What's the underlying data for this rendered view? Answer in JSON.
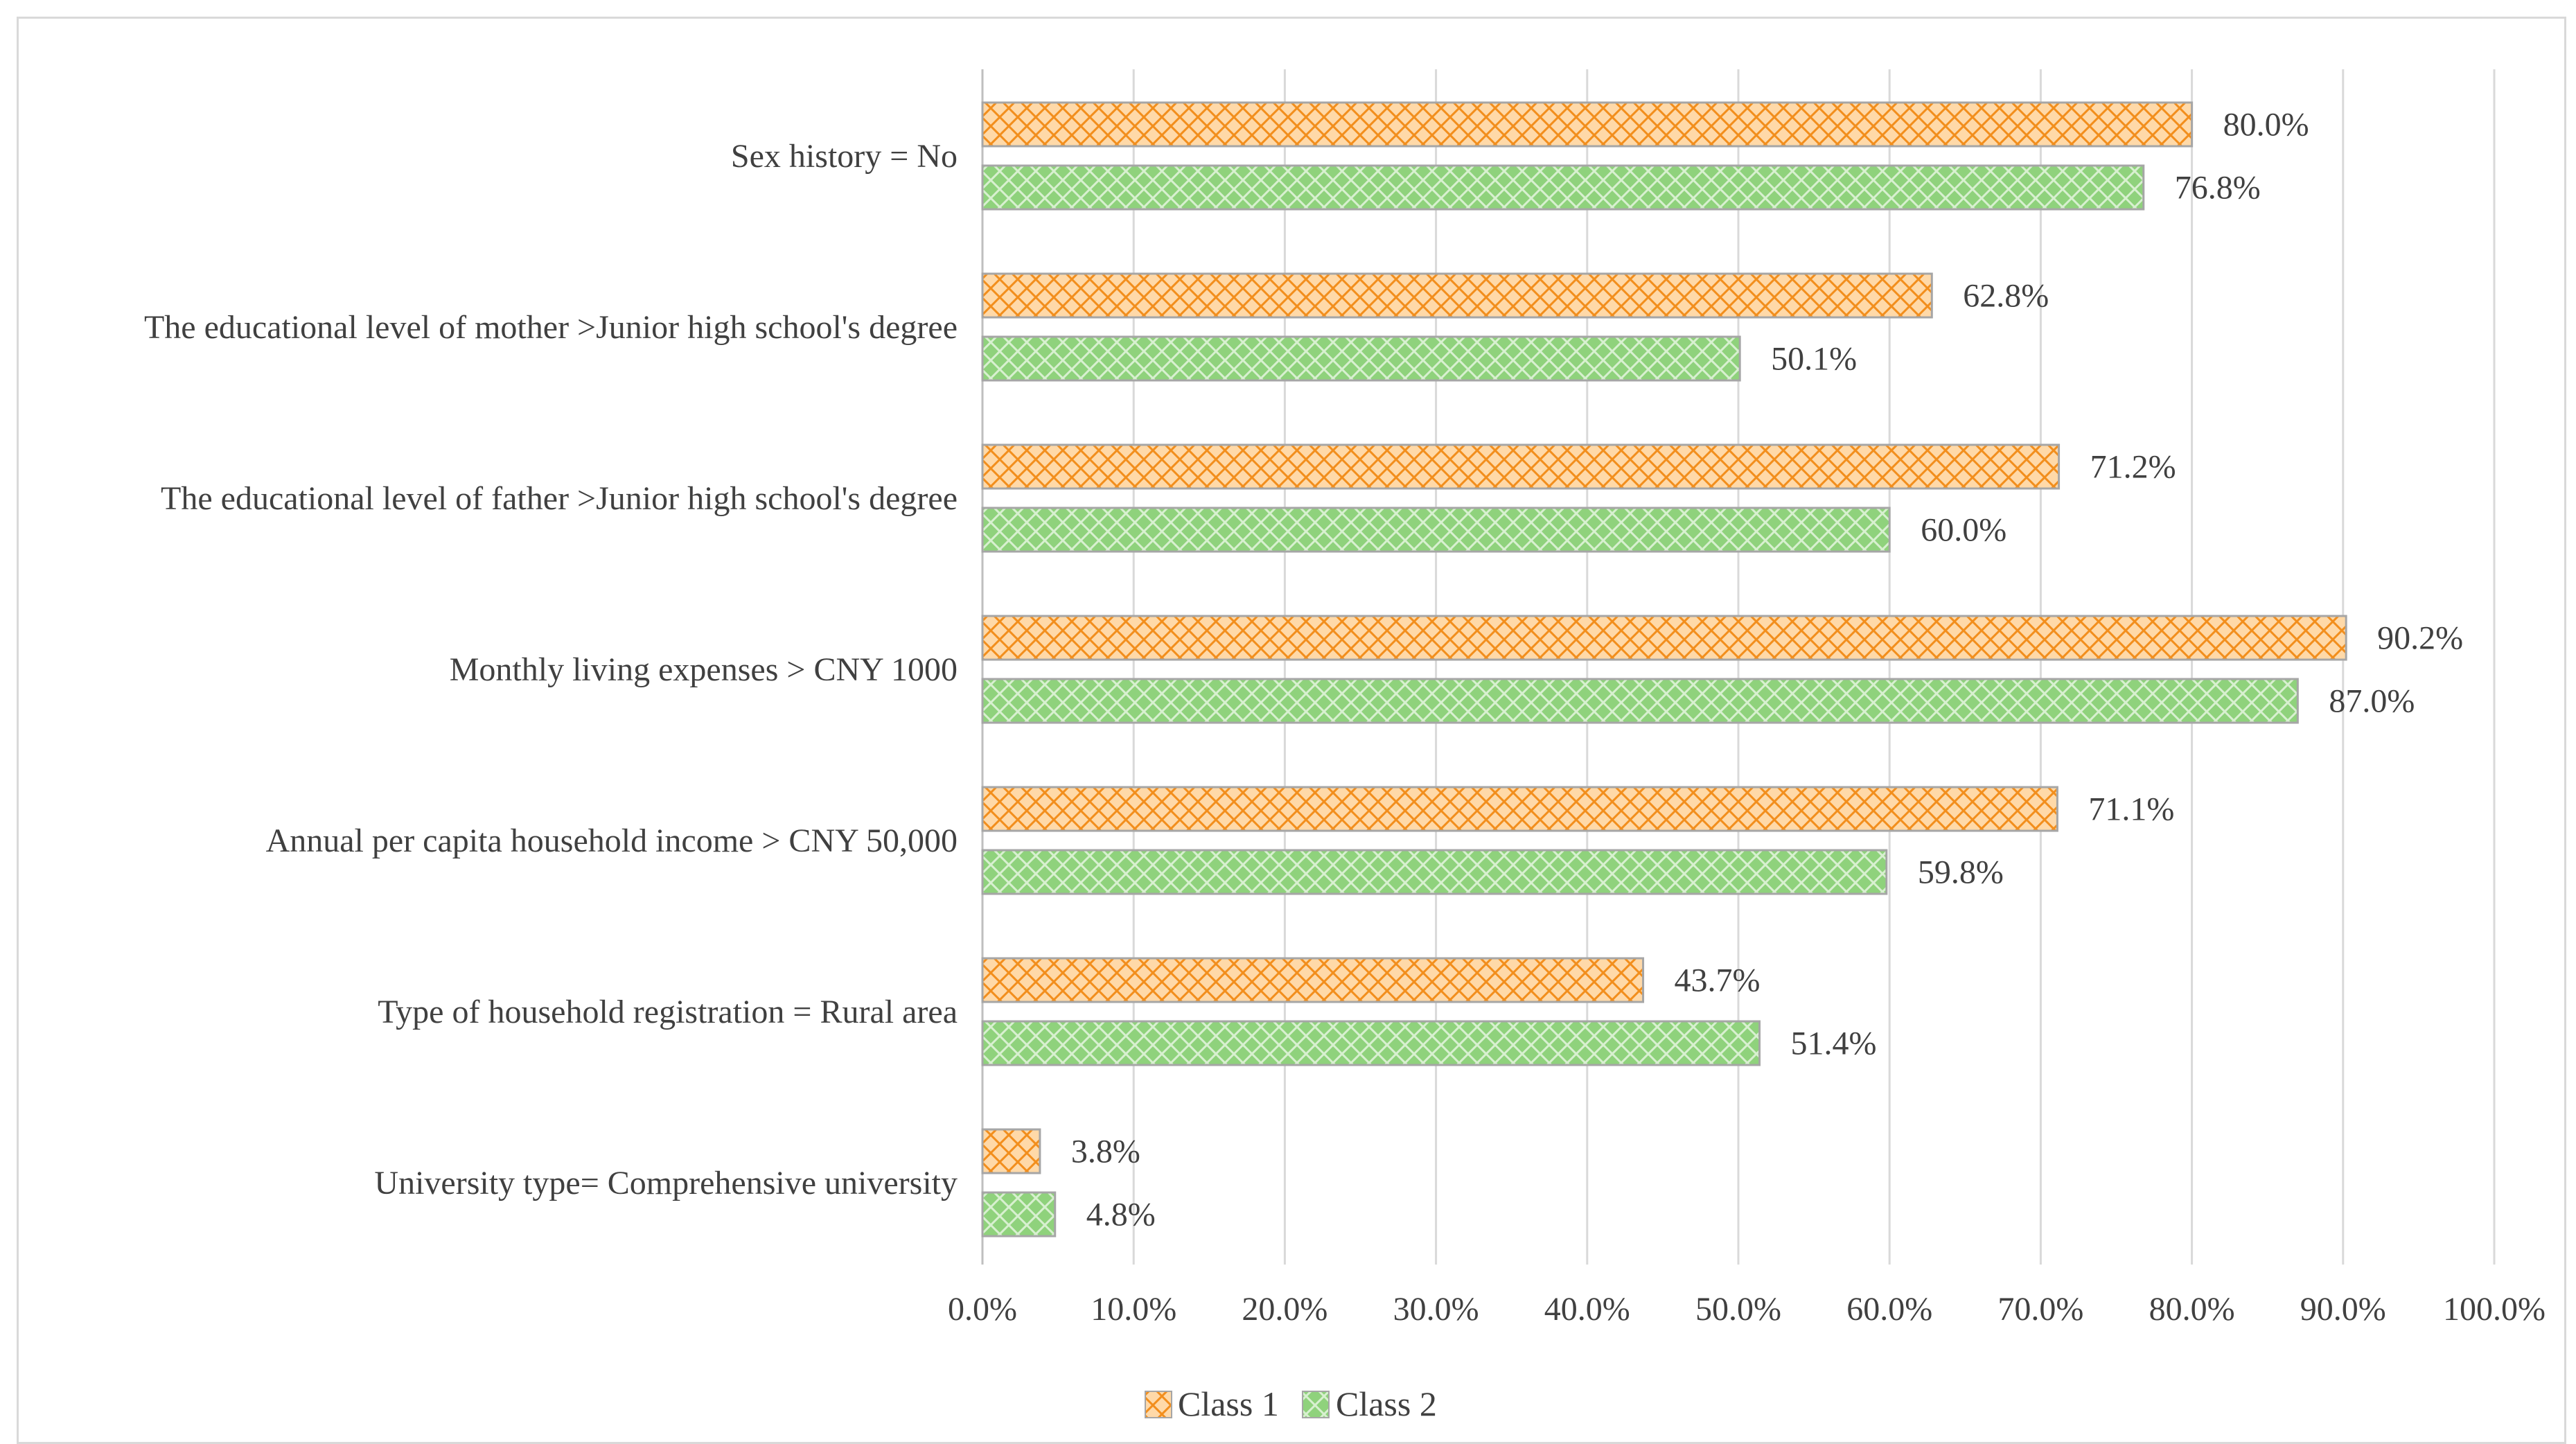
{
  "chart_data": {
    "type": "bar",
    "orientation": "horizontal",
    "title": "",
    "xlabel": "",
    "ylabel": "",
    "xlim": [
      0,
      100
    ],
    "x_ticks": [
      "0.0%",
      "10.0%",
      "20.0%",
      "30.0%",
      "40.0%",
      "50.0%",
      "60.0%",
      "70.0%",
      "80.0%",
      "90.0%",
      "100.0%"
    ],
    "grid": "vertical",
    "legend_position": "bottom",
    "categories": [
      "Sex history = No",
      "The educational level of mother >Junior high school's degree",
      "The educational level of father >Junior high school's degree",
      "Monthly living expenses > CNY 1000",
      "Annual per capita household income > CNY 50,000",
      "Type of household registration = Rural area",
      "University type= Comprehensive university"
    ],
    "series": [
      {
        "name": "Class 1",
        "values": [
          80.0,
          62.8,
          71.2,
          90.2,
          71.1,
          43.7,
          3.8
        ],
        "labels": [
          "80.0%",
          "62.8%",
          "71.2%",
          "90.2%",
          "71.1%",
          "43.7%",
          "3.8%"
        ],
        "color": "#ffd9a8",
        "pattern_color": "#f28e1c"
      },
      {
        "name": "Class 2",
        "values": [
          76.8,
          50.1,
          60.0,
          87.0,
          59.8,
          51.4,
          4.8
        ],
        "labels": [
          "76.8%",
          "50.1%",
          "60.0%",
          "87.0%",
          "59.8%",
          "51.4%",
          "4.8%"
        ],
        "color": "#8fd27c",
        "pattern_color": "#d8f0d0"
      }
    ]
  }
}
